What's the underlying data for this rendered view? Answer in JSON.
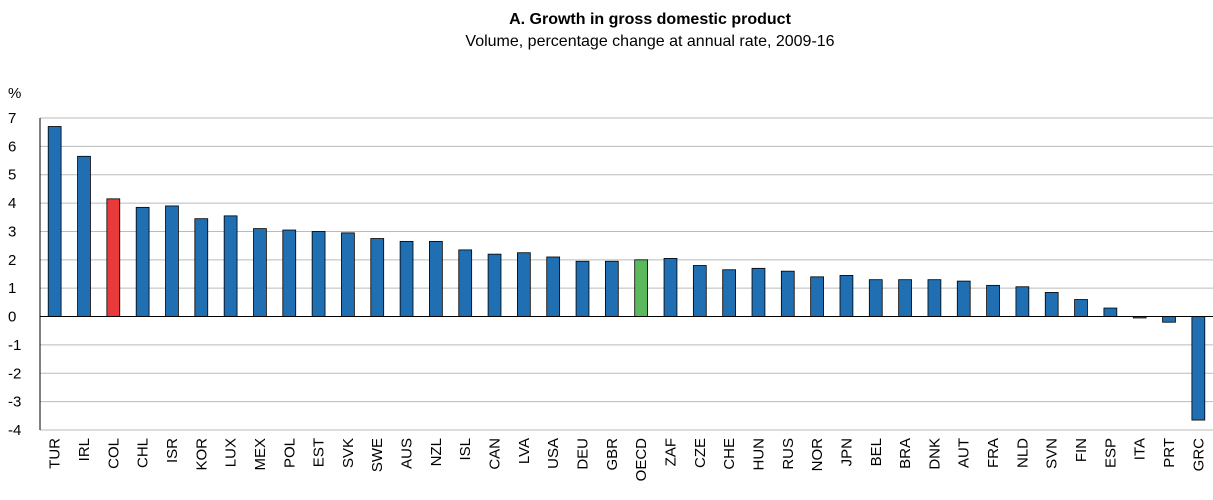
{
  "chart_data": {
    "type": "bar",
    "title": "A. Growth in gross domestic product",
    "subtitle": "Volume, percentage change at annual rate, 2009-16",
    "y_label": "%",
    "categories": [
      "TUR",
      "IRL",
      "COL",
      "CHL",
      "ISR",
      "KOR",
      "LUX",
      "MEX",
      "POL",
      "EST",
      "SVK",
      "SWE",
      "AUS",
      "NZL",
      "ISL",
      "CAN",
      "LVA",
      "USA",
      "DEU",
      "GBR",
      "OECD",
      "ZAF",
      "CZE",
      "CHE",
      "HUN",
      "RUS",
      "NOR",
      "JPN",
      "BEL",
      "BRA",
      "DNK",
      "AUT",
      "FRA",
      "NLD",
      "SVN",
      "FIN",
      "ESP",
      "ITA",
      "PRT",
      "GRC"
    ],
    "values": [
      6.7,
      5.65,
      4.15,
      3.85,
      3.9,
      3.45,
      3.55,
      3.1,
      3.05,
      3.0,
      2.95,
      2.75,
      2.65,
      2.65,
      2.35,
      2.2,
      2.25,
      2.1,
      1.95,
      1.95,
      2.0,
      2.05,
      1.8,
      1.65,
      1.7,
      1.6,
      1.4,
      1.45,
      1.3,
      1.3,
      1.3,
      1.25,
      1.1,
      1.05,
      0.85,
      0.6,
      0.3,
      -0.05,
      -0.2,
      -3.65
    ],
    "colors": [
      "#1f6fb2",
      "#1f6fb2",
      "#e8393b",
      "#1f6fb2",
      "#1f6fb2",
      "#1f6fb2",
      "#1f6fb2",
      "#1f6fb2",
      "#1f6fb2",
      "#1f6fb2",
      "#1f6fb2",
      "#1f6fb2",
      "#1f6fb2",
      "#1f6fb2",
      "#1f6fb2",
      "#1f6fb2",
      "#1f6fb2",
      "#1f6fb2",
      "#1f6fb2",
      "#1f6fb2",
      "#5cb85c",
      "#1f6fb2",
      "#1f6fb2",
      "#1f6fb2",
      "#1f6fb2",
      "#1f6fb2",
      "#1f6fb2",
      "#1f6fb2",
      "#1f6fb2",
      "#1f6fb2",
      "#1f6fb2",
      "#1f6fb2",
      "#1f6fb2",
      "#1f6fb2",
      "#1f6fb2",
      "#1f6fb2",
      "#1f6fb2",
      "#1f6fb2",
      "#1f6fb2",
      "#1f6fb2"
    ],
    "ylim": [
      -4,
      7
    ],
    "yticks": [
      -4,
      -3,
      -2,
      -1,
      0,
      1,
      2,
      3,
      4,
      5,
      6,
      7
    ],
    "grid": true
  }
}
